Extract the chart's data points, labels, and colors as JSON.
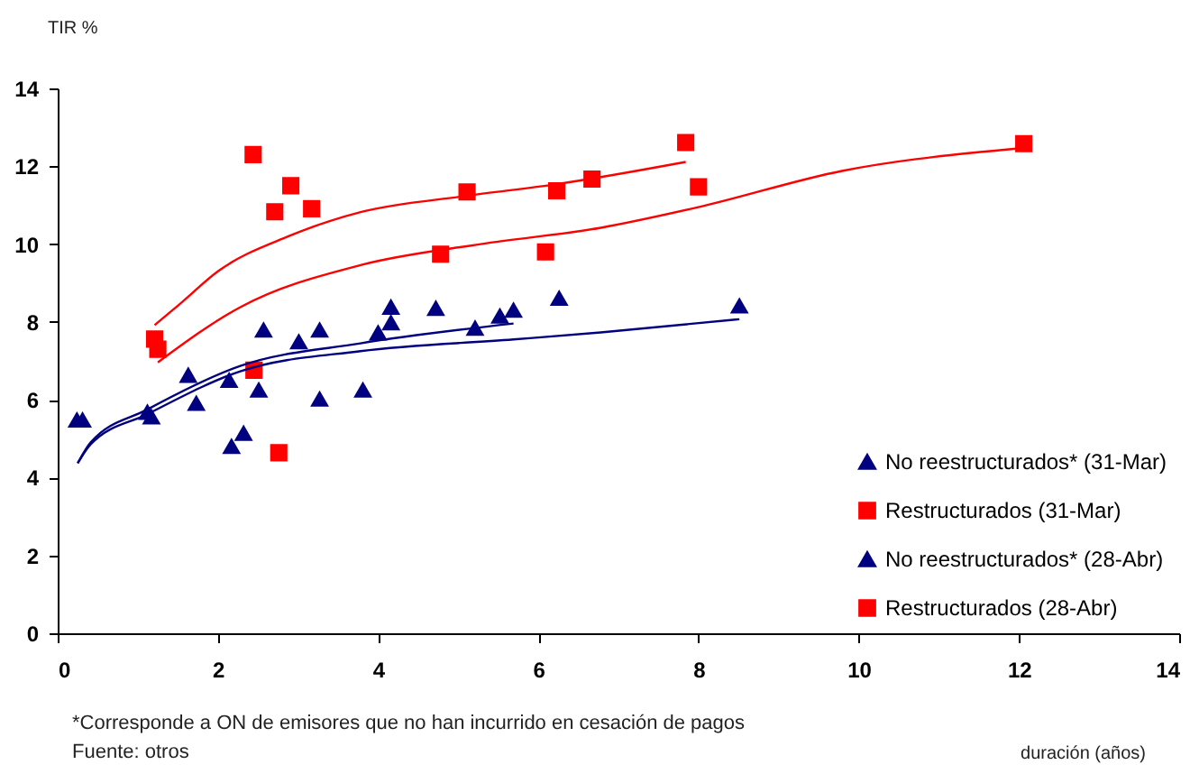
{
  "chart_data": {
    "type": "scatter",
    "xlabel": "duración (años)",
    "ylabel": "TIR %",
    "xlim": [
      0,
      14
    ],
    "xticks": [
      0,
      2,
      4,
      6,
      8,
      10,
      12,
      14
    ],
    "ylim": [
      0,
      14
    ],
    "yticks": [
      0,
      2,
      4,
      6,
      8,
      10,
      12,
      14
    ],
    "grid": false,
    "legend": "bottom right",
    "annotations": [
      "*Corresponde a ON de emisores que no han incurrido en cesación de pagos",
      "Fuente: otros"
    ],
    "series": [
      {
        "name": "No reestructurados* (31-Mar)",
        "color": "#000080",
        "marker": "triangle",
        "x": [
          0.31,
          1.12,
          1.63,
          2.14,
          2.17,
          2.57,
          3.27,
          3.27,
          4.16,
          4.16,
          4.72,
          5.69
        ],
        "values": [
          5.48,
          5.68,
          6.63,
          6.5,
          4.8,
          7.79,
          7.79,
          6.02,
          8.38,
          7.98,
          8.35,
          8.3
        ]
      },
      {
        "name": "Restructurados (31-Mar)",
        "color": "#ff0000",
        "marker": "square",
        "x": [
          1.21,
          2.44,
          2.71,
          2.45,
          4.78,
          5.11,
          6.23,
          7.84
        ],
        "values": [
          7.56,
          12.3,
          10.83,
          6.76,
          9.74,
          11.34,
          11.37,
          12.61
        ]
      },
      {
        "name": "No reestructurados* (28-Abr)",
        "color": "#000080",
        "marker": "triangle",
        "x": [
          0.24,
          1.17,
          1.73,
          2.32,
          2.51,
          3.01,
          3.81,
          4.0,
          5.21,
          5.52,
          6.26,
          8.51
        ],
        "values": [
          5.48,
          5.56,
          5.91,
          5.14,
          6.25,
          7.49,
          6.25,
          7.72,
          7.84,
          8.15,
          8.61,
          8.41
        ]
      },
      {
        "name": "Restructurados (28-Abr)",
        "color": "#ff0000",
        "marker": "square",
        "x": [
          1.25,
          2.91,
          3.17,
          2.76,
          6.09,
          6.67,
          8.0,
          12.06
        ],
        "values": [
          7.3,
          11.5,
          10.91,
          4.64,
          9.8,
          11.67,
          11.47,
          12.58
        ]
      },
      {
        "type": "line",
        "color": "#ff0000",
        "x": [
          1.21,
          1.53,
          2.0,
          2.88,
          3.78,
          5.11,
          6.23,
          7.84
        ],
        "values": [
          7.92,
          8.47,
          9.3,
          10.2,
          10.82,
          11.24,
          11.54,
          12.11
        ]
      },
      {
        "type": "line",
        "color": "#ff0000",
        "x": [
          1.25,
          2.28,
          3.78,
          5.28,
          6.78,
          8.0,
          9.79,
          12.06
        ],
        "values": [
          6.96,
          8.38,
          9.46,
          10.0,
          10.42,
          10.95,
          11.88,
          12.47
        ]
      },
      {
        "type": "line",
        "color": "#000080",
        "x": [
          0.25,
          0.41,
          1.12,
          2.28,
          3.78,
          5.69
        ],
        "values": [
          4.37,
          4.9,
          5.75,
          6.87,
          7.45,
          7.96
        ]
      },
      {
        "type": "line",
        "color": "#000080",
        "x": [
          0.25,
          0.41,
          1.12,
          2.28,
          3.78,
          5.69,
          6.78,
          8.51
        ],
        "values": [
          4.37,
          4.85,
          5.63,
          6.73,
          7.25,
          7.55,
          7.73,
          8.07
        ]
      }
    ]
  }
}
